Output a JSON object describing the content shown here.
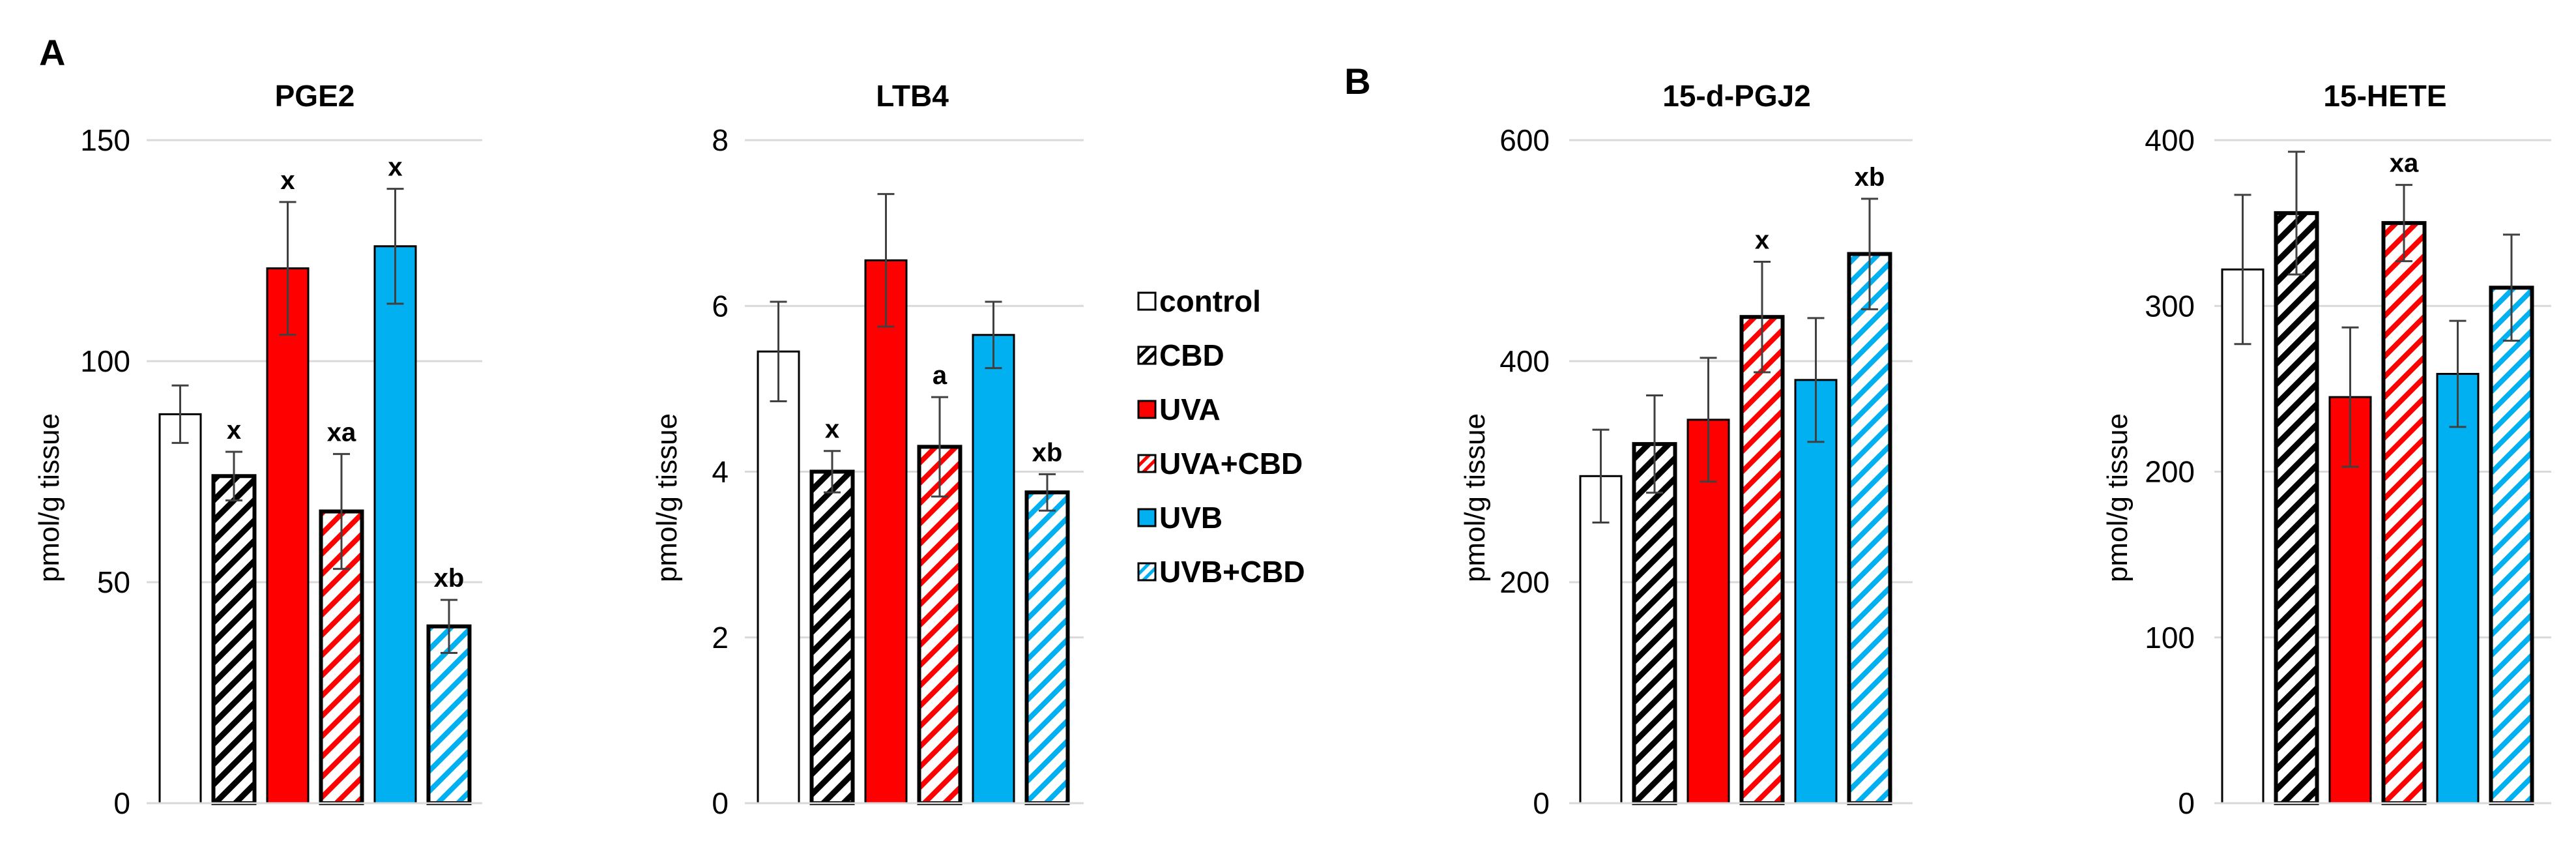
{
  "panel_labels": [
    "A",
    "B"
  ],
  "colors": {
    "control": "#ffffff",
    "uva": "#ff0000",
    "uvb": "#00b0f0",
    "outline": "#000000",
    "grid": "#d9d9d9",
    "error": "#404040"
  },
  "legend": [
    {
      "label": "control",
      "fill": "#ffffff",
      "hatch": null
    },
    {
      "label": "CBD",
      "fill": "#ffffff",
      "hatch": "#000000"
    },
    {
      "label": "UVA",
      "fill": "#ff0000",
      "hatch": null
    },
    {
      "label": "UVA+CBD",
      "fill": "#ffffff",
      "hatch": "#ff0000"
    },
    {
      "label": "UVB",
      "fill": "#00b0f0",
      "hatch": null
    },
    {
      "label": "UVB+CBD",
      "fill": "#ffffff",
      "hatch": "#00b0f0"
    }
  ],
  "chart_data": [
    {
      "type": "bar",
      "title": "PGE2",
      "ylabel": "pmol/g tissue",
      "ylim": [
        0,
        150
      ],
      "yticks": [
        0,
        50,
        100,
        150
      ],
      "categories": [
        "control",
        "CBD",
        "UVA",
        "UVA+CBD",
        "UVB",
        "UVB+CBD"
      ],
      "values": [
        88,
        74,
        121,
        66,
        126,
        40
      ],
      "errors": [
        6.5,
        5.5,
        15,
        13,
        13,
        6
      ],
      "annotations": [
        "",
        "x",
        "x",
        "xa",
        "x",
        "xb"
      ]
    },
    {
      "type": "bar",
      "title": "LTB4",
      "ylabel": "pmol/g tissue",
      "ylim": [
        0,
        8
      ],
      "yticks": [
        0,
        2,
        4,
        6,
        8
      ],
      "categories": [
        "control",
        "CBD",
        "UVA",
        "UVA+CBD",
        "UVB",
        "UVB+CBD"
      ],
      "values": [
        5.45,
        4.0,
        6.55,
        4.3,
        5.65,
        3.75
      ],
      "errors": [
        0.6,
        0.25,
        0.8,
        0.6,
        0.4,
        0.22
      ],
      "annotations": [
        "",
        "x",
        "",
        "a",
        "",
        "xb"
      ]
    },
    {
      "type": "bar",
      "title": "15-d-PGJ2",
      "ylabel": "pmol/g tissue",
      "ylim": [
        0,
        600
      ],
      "yticks": [
        0,
        200,
        400,
        600
      ],
      "categories": [
        "control",
        "CBD",
        "UVA",
        "UVA+CBD",
        "UVB",
        "UVB+CBD"
      ],
      "values": [
        296,
        325,
        347,
        440,
        383,
        497
      ],
      "errors": [
        42,
        44,
        56,
        50,
        56,
        50
      ],
      "annotations": [
        "",
        "",
        "",
        "x",
        "",
        "xb"
      ]
    },
    {
      "type": "bar",
      "title": "15-HETE",
      "ylabel": "pmol/g tissue",
      "ylim": [
        0,
        400
      ],
      "yticks": [
        0,
        100,
        200,
        300,
        400
      ],
      "categories": [
        "control",
        "CBD",
        "UVA",
        "UVA+CBD",
        "UVB",
        "UVB+CBD"
      ],
      "values": [
        322,
        356,
        245,
        350,
        259,
        311
      ],
      "errors": [
        45,
        37,
        42,
        23,
        32,
        32
      ],
      "annotations": [
        "",
        "",
        "",
        "xa",
        "",
        ""
      ]
    }
  ]
}
